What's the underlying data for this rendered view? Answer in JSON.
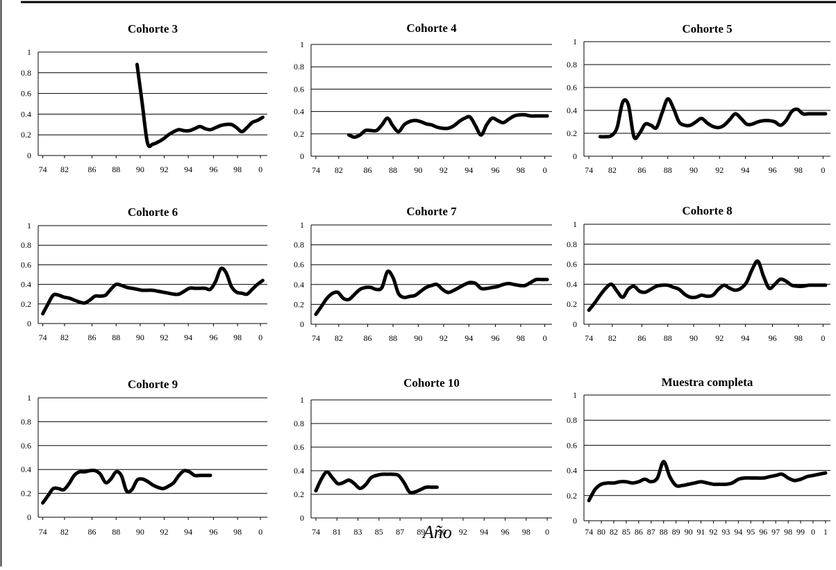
{
  "xlabel": "Año",
  "chart_data": [
    {
      "type": "line",
      "title": "Cohorte 3",
      "ylim": [
        0,
        1
      ],
      "yticks": [
        "0",
        "0.2",
        "0.4",
        "0.6",
        "0.8",
        "1"
      ],
      "categories": [
        "74",
        "82",
        "86",
        "88",
        "90",
        "92",
        "94",
        "96",
        "98",
        "0"
      ],
      "series": [
        {
          "x": [
            89.0,
            89.5,
            90.0,
            90.5,
            91.0,
            91.5,
            92.0,
            92.5,
            93.0,
            93.5,
            94.0,
            94.5,
            95.0,
            95.5,
            96.0,
            96.5,
            97.0,
            97.5,
            98.0,
            98.5,
            99.0,
            99.5,
            100.0,
            100.5,
            101.0
          ],
          "values": [
            0.88,
            0.5,
            0.12,
            0.11,
            0.13,
            0.16,
            0.2,
            0.23,
            0.25,
            0.24,
            0.24,
            0.26,
            0.28,
            0.26,
            0.25,
            0.27,
            0.29,
            0.3,
            0.3,
            0.27,
            0.23,
            0.27,
            0.32,
            0.34,
            0.37
          ]
        }
      ]
    },
    {
      "type": "line",
      "title": "Cohorte 4",
      "ylim": [
        0,
        1
      ],
      "yticks": [
        "0",
        "0.2",
        "0.4",
        "0.6",
        "0.8",
        "1"
      ],
      "categories": [
        "74",
        "82",
        "86",
        "88",
        "90",
        "92",
        "94",
        "96",
        "98",
        "0"
      ],
      "series": [
        {
          "x": [
            83.0,
            83.5,
            84.0,
            84.5,
            85.0,
            85.5,
            86.0,
            86.5,
            87.0,
            87.5,
            88.0,
            88.5,
            89.0,
            89.5,
            90.0,
            90.5,
            91.0,
            91.5,
            92.0,
            92.5,
            93.0,
            93.5,
            94.0,
            94.5,
            95.0,
            95.5,
            96.0,
            96.5,
            97.0,
            97.5,
            98.0,
            98.5,
            99.0,
            99.5,
            100.0,
            100.5,
            101.0
          ],
          "values": [
            0.19,
            0.17,
            0.19,
            0.23,
            0.23,
            0.23,
            0.28,
            0.34,
            0.27,
            0.22,
            0.28,
            0.31,
            0.32,
            0.31,
            0.29,
            0.28,
            0.26,
            0.25,
            0.25,
            0.27,
            0.31,
            0.34,
            0.35,
            0.27,
            0.19,
            0.28,
            0.34,
            0.32,
            0.3,
            0.33,
            0.36,
            0.37,
            0.37,
            0.36,
            0.36,
            0.36,
            0.36
          ]
        }
      ]
    },
    {
      "type": "line",
      "title": "Cohorte 5",
      "ylim": [
        0,
        1
      ],
      "yticks": [
        "0",
        "0.2",
        "0.4",
        "0.6",
        "0.8",
        "1"
      ],
      "categories": [
        "74",
        "82",
        "86",
        "88",
        "90",
        "92",
        "94",
        "96",
        "98",
        "0"
      ],
      "series": [
        {
          "x": [
            81.0,
            81.5,
            82.0,
            82.5,
            83.0,
            83.5,
            84.0,
            84.5,
            85.0,
            85.5,
            86.0,
            86.5,
            87.0,
            87.5,
            88.0,
            88.5,
            89.0,
            89.5,
            90.0,
            90.5,
            91.0,
            91.5,
            92.0,
            92.5,
            93.0,
            93.5,
            94.0,
            94.5,
            95.0,
            95.5,
            96.0,
            96.5,
            97.0,
            97.5,
            98.0,
            98.5,
            99.0,
            99.5,
            100.0,
            100.5,
            101.0
          ],
          "values": [
            0.17,
            0.17,
            0.18,
            0.25,
            0.47,
            0.45,
            0.17,
            0.2,
            0.28,
            0.27,
            0.25,
            0.38,
            0.5,
            0.42,
            0.3,
            0.27,
            0.27,
            0.3,
            0.33,
            0.29,
            0.26,
            0.25,
            0.27,
            0.32,
            0.37,
            0.33,
            0.28,
            0.28,
            0.3,
            0.31,
            0.31,
            0.3,
            0.27,
            0.31,
            0.39,
            0.41,
            0.37,
            0.37,
            0.37,
            0.37,
            0.37
          ]
        }
      ]
    },
    {
      "type": "line",
      "title": "Cohorte 6",
      "ylim": [
        0,
        1
      ],
      "yticks": [
        "0",
        "0.2",
        "0.4",
        "0.6",
        "0.8",
        "1"
      ],
      "categories": [
        "74",
        "82",
        "86",
        "88",
        "90",
        "92",
        "94",
        "96",
        "98",
        "0"
      ],
      "series": [
        {
          "x": [
            80.0,
            80.5,
            81.0,
            81.5,
            82.0,
            82.5,
            83.0,
            83.5,
            84.0,
            84.5,
            85.0,
            85.5,
            86.0,
            86.5,
            87.0,
            87.5,
            88.0,
            88.5,
            89.0,
            89.5,
            90.0,
            90.5,
            91.0,
            91.5,
            92.0,
            92.5,
            93.0,
            93.5,
            94.0,
            94.5,
            95.0,
            95.5,
            96.0,
            96.5,
            97.0,
            97.5,
            98.0,
            98.5,
            99.0,
            99.5,
            100.0,
            100.5,
            101.0
          ],
          "values": [
            0.1,
            0.2,
            0.29,
            0.29,
            0.27,
            0.26,
            0.24,
            0.22,
            0.21,
            0.24,
            0.28,
            0.28,
            0.29,
            0.35,
            0.4,
            0.39,
            0.37,
            0.36,
            0.35,
            0.34,
            0.34,
            0.34,
            0.33,
            0.32,
            0.31,
            0.3,
            0.3,
            0.33,
            0.36,
            0.36,
            0.36,
            0.36,
            0.35,
            0.43,
            0.56,
            0.52,
            0.38,
            0.32,
            0.31,
            0.3,
            0.35,
            0.4,
            0.44
          ]
        }
      ]
    },
    {
      "type": "line",
      "title": "Cohorte 7",
      "ylim": [
        0,
        1
      ],
      "yticks": [
        "0",
        "0.2",
        "0.4",
        "0.6",
        "0.8",
        "1"
      ],
      "categories": [
        "74",
        "82",
        "86",
        "88",
        "90",
        "92",
        "94",
        "96",
        "98",
        "0"
      ],
      "series": [
        {
          "x": [
            80.0,
            80.5,
            81.0,
            81.5,
            82.0,
            82.5,
            83.0,
            83.5,
            84.0,
            84.5,
            85.0,
            85.5,
            86.0,
            86.5,
            87.0,
            87.5,
            88.0,
            88.5,
            89.0,
            89.5,
            90.0,
            90.5,
            91.0,
            91.5,
            92.0,
            92.5,
            93.0,
            93.5,
            94.0,
            94.5,
            95.0,
            95.5,
            96.0,
            96.5,
            97.0,
            97.5,
            98.0,
            98.5,
            99.0,
            99.5,
            100.0,
            100.5,
            101.0
          ],
          "values": [
            0.1,
            0.18,
            0.26,
            0.31,
            0.32,
            0.26,
            0.25,
            0.3,
            0.35,
            0.37,
            0.37,
            0.35,
            0.37,
            0.53,
            0.47,
            0.31,
            0.27,
            0.28,
            0.29,
            0.33,
            0.37,
            0.39,
            0.4,
            0.35,
            0.32,
            0.34,
            0.37,
            0.4,
            0.42,
            0.41,
            0.36,
            0.36,
            0.37,
            0.38,
            0.4,
            0.41,
            0.4,
            0.39,
            0.39,
            0.42,
            0.45,
            0.45,
            0.45
          ]
        }
      ]
    },
    {
      "type": "line",
      "title": "Cohorte 8",
      "ylim": [
        0,
        1
      ],
      "yticks": [
        "0",
        "0.2",
        "0.4",
        "0.6",
        "0.8",
        "1"
      ],
      "categories": [
        "74",
        "82",
        "86",
        "88",
        "90",
        "92",
        "94",
        "96",
        "98",
        "0"
      ],
      "series": [
        {
          "x": [
            80.0,
            80.5,
            81.0,
            81.5,
            82.0,
            82.5,
            83.0,
            83.5,
            84.0,
            84.5,
            85.0,
            85.5,
            86.0,
            86.5,
            87.0,
            87.5,
            88.0,
            88.5,
            89.0,
            89.5,
            90.0,
            90.5,
            91.0,
            91.5,
            92.0,
            92.5,
            93.0,
            93.5,
            94.0,
            94.5,
            95.0,
            95.5,
            96.0,
            96.5,
            97.0,
            97.5,
            98.0,
            98.5,
            99.0,
            99.5,
            100.0,
            100.5,
            101.0
          ],
          "values": [
            0.14,
            0.21,
            0.29,
            0.36,
            0.4,
            0.33,
            0.27,
            0.35,
            0.38,
            0.33,
            0.32,
            0.35,
            0.38,
            0.39,
            0.39,
            0.37,
            0.35,
            0.3,
            0.27,
            0.27,
            0.29,
            0.28,
            0.29,
            0.35,
            0.39,
            0.36,
            0.34,
            0.36,
            0.42,
            0.55,
            0.63,
            0.48,
            0.36,
            0.4,
            0.45,
            0.43,
            0.39,
            0.38,
            0.38,
            0.39,
            0.39,
            0.39,
            0.39
          ]
        }
      ]
    },
    {
      "type": "line",
      "title": "Cohorte 9",
      "ylim": [
        0,
        1
      ],
      "yticks": [
        "0",
        "0.2",
        "0.4",
        "0.6",
        "0.8",
        "1"
      ],
      "categories": [
        "74",
        "82",
        "86",
        "88",
        "90",
        "92",
        "94",
        "96",
        "98",
        "0"
      ],
      "series": [
        {
          "x": [
            80.0,
            80.5,
            81.0,
            81.5,
            82.0,
            82.5,
            83.0,
            83.5,
            84.0,
            84.5,
            85.0,
            85.5,
            86.0,
            86.5,
            87.0,
            87.5,
            88.0,
            88.5,
            89.0,
            89.5,
            90.0,
            90.5,
            91.0,
            91.5,
            92.0,
            92.5,
            93.0,
            93.5,
            94.0,
            94.5,
            95.0,
            95.5,
            96.0
          ],
          "values": [
            0.12,
            0.18,
            0.24,
            0.24,
            0.23,
            0.28,
            0.35,
            0.38,
            0.38,
            0.39,
            0.39,
            0.36,
            0.29,
            0.32,
            0.38,
            0.35,
            0.22,
            0.23,
            0.31,
            0.32,
            0.3,
            0.27,
            0.25,
            0.24,
            0.26,
            0.29,
            0.35,
            0.39,
            0.38,
            0.35,
            0.35,
            0.35,
            0.35
          ]
        }
      ]
    },
    {
      "type": "line",
      "title": "Cohorte 10",
      "ylim": [
        0,
        1
      ],
      "yticks": [
        "0",
        "0.2",
        "0.4",
        "0.6",
        "0.8",
        "1"
      ],
      "categories": [
        "74",
        "81",
        "83",
        "85",
        "87",
        "89",
        "90",
        "92",
        "94",
        "96",
        "98",
        "0"
      ],
      "series": [
        {
          "x": [
            80.0,
            80.5,
            81.0,
            81.5,
            82.0,
            82.5,
            83.0,
            83.5,
            84.0,
            84.5,
            85.0,
            85.5,
            86.0,
            86.5,
            87.0,
            87.5,
            88.0,
            88.5,
            89.0,
            89.5,
            90.0,
            90.5,
            91.0
          ],
          "values": [
            0.23,
            0.33,
            0.39,
            0.34,
            0.29,
            0.3,
            0.32,
            0.29,
            0.25,
            0.28,
            0.34,
            0.36,
            0.37,
            0.37,
            0.37,
            0.36,
            0.3,
            0.22,
            0.22,
            0.24,
            0.26,
            0.26,
            0.26
          ]
        }
      ]
    },
    {
      "type": "line",
      "title": "Muestra completa",
      "ylim": [
        0,
        1
      ],
      "yticks": [
        "0",
        "0.2",
        "0.4",
        "0.6",
        "0.8",
        "1"
      ],
      "categories": [
        "74",
        "80",
        "82",
        "85",
        "86",
        "87",
        "88",
        "89",
        "90",
        "91",
        "92",
        "93",
        "94",
        "95",
        "96",
        "97",
        "98",
        "99",
        "0",
        "1"
      ],
      "series": [
        {
          "x": [
            0,
            0.5,
            1,
            1.5,
            2,
            2.5,
            3,
            3.5,
            4,
            4.5,
            5,
            5.5,
            6,
            6.5,
            7,
            7.5,
            8,
            8.5,
            9,
            9.5,
            10,
            10.5,
            11,
            11.5,
            12,
            12.5,
            13,
            13.5,
            14,
            14.5,
            15,
            15.5,
            16,
            16.5,
            17,
            17.5,
            18,
            18.5,
            19
          ],
          "values": [
            0.16,
            0.25,
            0.29,
            0.3,
            0.3,
            0.31,
            0.31,
            0.3,
            0.31,
            0.33,
            0.31,
            0.34,
            0.47,
            0.35,
            0.28,
            0.28,
            0.29,
            0.3,
            0.31,
            0.3,
            0.29,
            0.29,
            0.29,
            0.3,
            0.33,
            0.34,
            0.34,
            0.34,
            0.34,
            0.35,
            0.36,
            0.37,
            0.34,
            0.32,
            0.33,
            0.35,
            0.36,
            0.37,
            0.38
          ]
        }
      ]
    }
  ]
}
